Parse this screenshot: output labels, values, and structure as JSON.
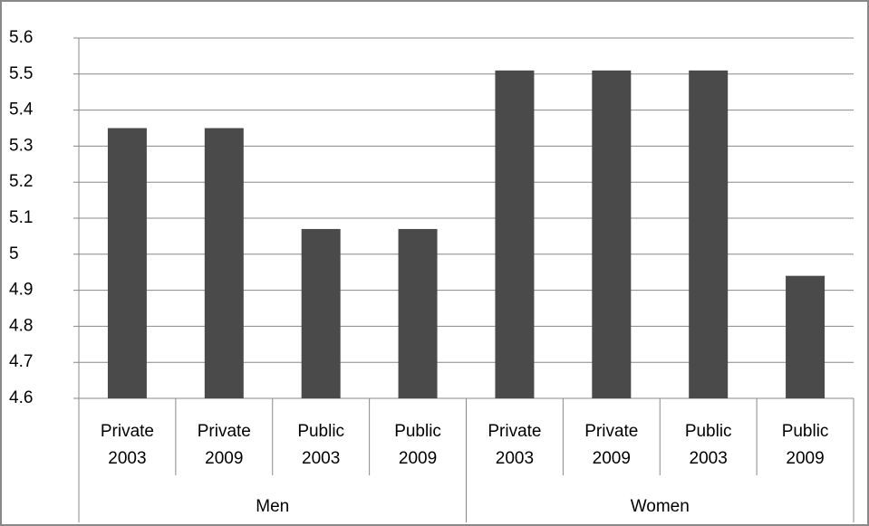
{
  "chart_data": {
    "type": "bar",
    "color": "#4a4a4a",
    "grid": true,
    "ylim": [
      4.6,
      5.6
    ],
    "yticks": [
      4.6,
      4.7,
      4.8,
      4.9,
      5,
      5.1,
      5.2,
      5.3,
      5.4,
      5.5,
      5.6
    ],
    "groups": [
      {
        "name": "Men",
        "categories": [
          [
            "Private",
            "2003"
          ],
          [
            "Private",
            "2009"
          ],
          [
            "Public",
            "2003"
          ],
          [
            "Public",
            "2009"
          ]
        ],
        "values": [
          5.35,
          5.35,
          5.07,
          5.07
        ]
      },
      {
        "name": "Women",
        "categories": [
          [
            "Private",
            "2003"
          ],
          [
            "Private",
            "2009"
          ],
          [
            "Public",
            "2003"
          ],
          [
            "Public",
            "2009"
          ]
        ],
        "values": [
          5.51,
          5.51,
          5.51,
          4.94
        ]
      }
    ]
  }
}
